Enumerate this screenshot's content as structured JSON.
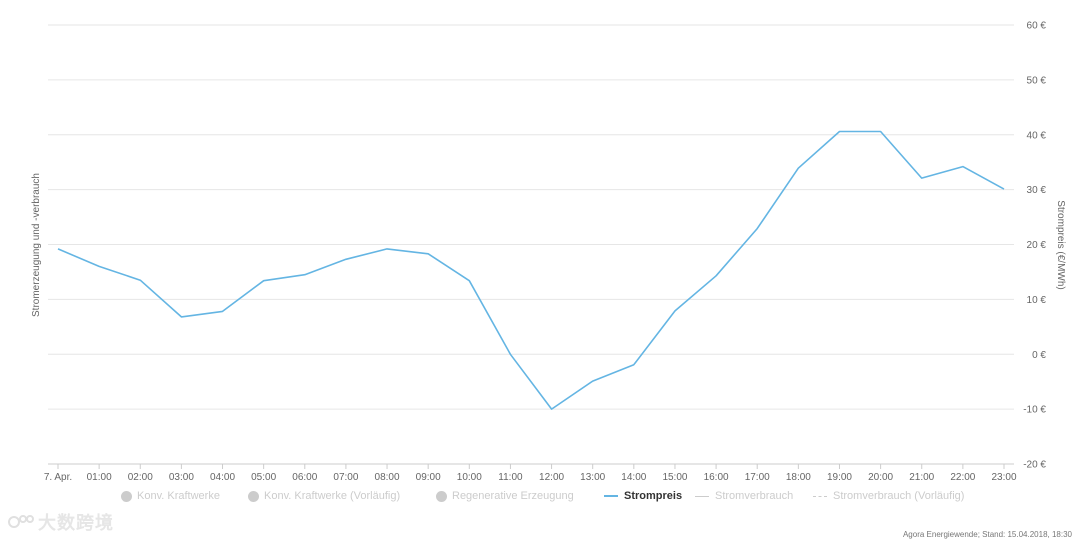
{
  "chart_data": {
    "type": "line",
    "x": [
      "7. Apr.",
      "01:00",
      "02:00",
      "03:00",
      "04:00",
      "05:00",
      "06:00",
      "07:00",
      "08:00",
      "09:00",
      "10:00",
      "11:00",
      "12:00",
      "13:00",
      "14:00",
      "15:00",
      "16:00",
      "17:00",
      "18:00",
      "19:00",
      "20:00",
      "21:00",
      "22:00",
      "23:00"
    ],
    "series": [
      {
        "name": "Strompreis",
        "color": "#64b5e3",
        "values": [
          19.2,
          16,
          13.5,
          6.8,
          7.8,
          13.4,
          14.5,
          17.3,
          19.2,
          18.3,
          13.4,
          0,
          -10,
          -4.9,
          -1.9,
          7.9,
          14.3,
          22.9,
          33.9,
          40.6,
          40.6,
          32.1,
          34.2,
          30.1
        ]
      }
    ],
    "ylim": [
      -20,
      60
    ],
    "ytick_values": [
      -20,
      -10,
      0,
      10,
      20,
      30,
      40,
      50,
      60
    ],
    "ytick_labels": [
      "-20 €",
      "-10 €",
      "0 €",
      "10 €",
      "20 €",
      "30 €",
      "40 €",
      "50 €",
      "60 €"
    ],
    "ylabel_left": "Stromerzeugung und -verbrauch",
    "ylabel_right": "Strompreis (€/MWh)",
    "grid": true,
    "legend_position": "bottom"
  },
  "legend": [
    {
      "label": "Konv. Kraftwerke",
      "symbol": "dot",
      "active": false
    },
    {
      "label": "Konv. Kraftwerke (Vorläufig)",
      "symbol": "dot",
      "active": false
    },
    {
      "label": "Regenerative Erzeugung",
      "symbol": "dot",
      "active": false
    },
    {
      "label": "Strompreis",
      "symbol": "line",
      "active": true,
      "color": "#64b5e3"
    },
    {
      "label": "Stromverbrauch",
      "symbol": "line",
      "active": false
    },
    {
      "label": "Stromverbrauch (Vorläufig)",
      "symbol": "dashed-line",
      "active": false
    }
  ],
  "credit": "Agora Energiewende; Stand: 15.04.2018, 18:30",
  "watermark": "大数跨境"
}
